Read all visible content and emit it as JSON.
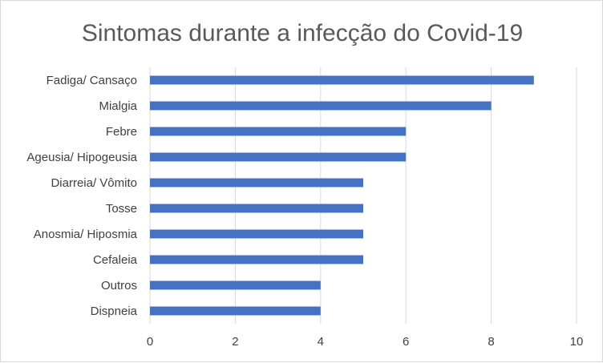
{
  "chart_data": {
    "type": "bar",
    "orientation": "horizontal",
    "title": "Sintomas durante a infecção do Covid-19",
    "xlabel": "",
    "ylabel": "",
    "categories": [
      "Fadiga/ Cansaço",
      "Mialgia",
      "Febre",
      "Ageusia/ Hipogeusia",
      "Diarreia/ Vômito",
      "Tosse",
      "Anosmia/ Hiposmia",
      "Cefaleia",
      "Outros",
      "Dispneia"
    ],
    "values": [
      9,
      8,
      6,
      6,
      5,
      5,
      5,
      5,
      4,
      4
    ],
    "xlim": [
      0,
      10
    ],
    "xticks": [
      0,
      2,
      4,
      6,
      8,
      10
    ],
    "grid": "vertical",
    "legend": "none",
    "colors": {
      "bar": "#4472c4",
      "grid": "#d9d9d9",
      "text": "#404040",
      "title": "#595959"
    }
  }
}
